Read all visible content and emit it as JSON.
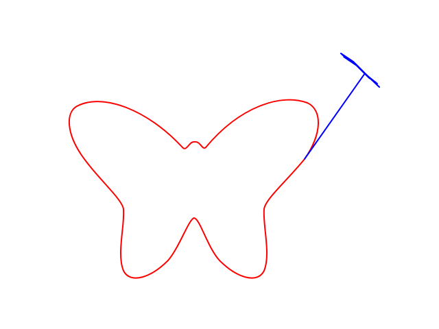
{
  "figure": {
    "background": "#ffffff",
    "elements": [
      {
        "name": "butterfly-curve",
        "kind": "closed-curve",
        "color": "#ff0000"
      },
      {
        "name": "pen-arm",
        "kind": "line",
        "color": "#0000ff"
      },
      {
        "name": "pen-tip",
        "kind": "short-stroke",
        "color": "#0000ff"
      }
    ]
  }
}
